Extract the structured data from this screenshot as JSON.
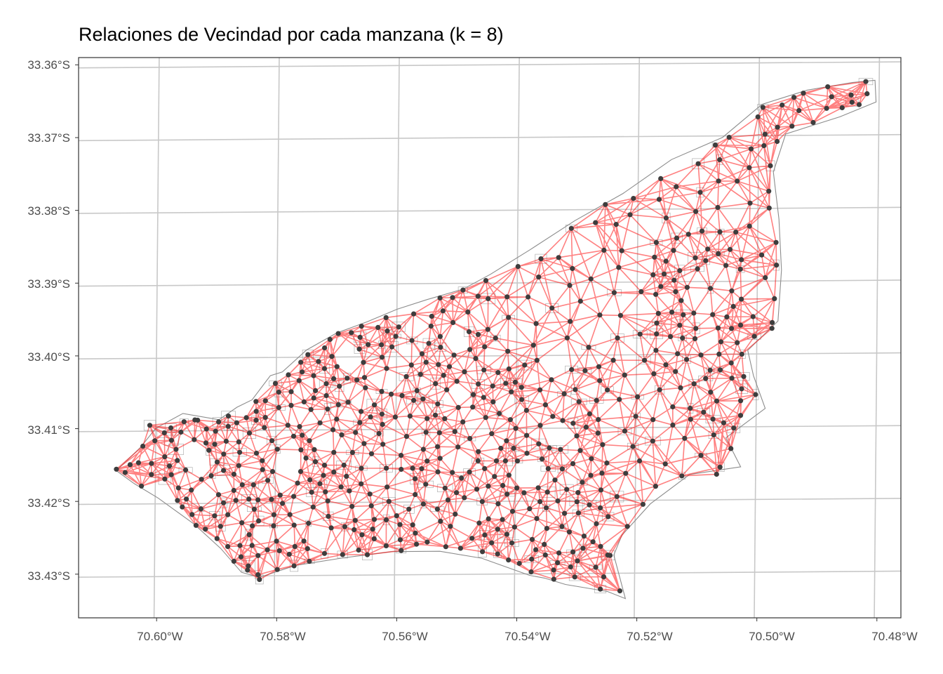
{
  "title": "Relaciones de Vecindad por cada manzana (k = 8)",
  "map": {
    "type": "neighbour-graph map",
    "k": 8,
    "lat_labels": [
      "33.36°S",
      "33.37°S",
      "33.38°S",
      "33.39°S",
      "33.40°S",
      "33.41°S",
      "33.42°S",
      "33.43°S"
    ],
    "lon_labels": [
      "70.60°W",
      "70.58°W",
      "70.56°W",
      "70.54°W",
      "70.52°W",
      "70.50°W",
      "70.48°W"
    ],
    "lat_values": [
      -33.36,
      -33.37,
      -33.38,
      -33.39,
      -33.4,
      -33.41,
      -33.42,
      -33.43
    ],
    "lon_values": [
      -70.6,
      -70.58,
      -70.56,
      -70.54,
      -70.52,
      -70.5,
      -70.48
    ],
    "extent": {
      "lon_min": -70.613,
      "lon_max": -70.476,
      "lat_min": -33.436,
      "lat_max": -33.359
    },
    "boundary_lonlat": [
      [
        -70.6065,
        -33.4154
      ],
      [
        -70.6025,
        -33.4122
      ],
      [
        -70.6,
        -33.4096
      ],
      [
        -70.5955,
        -33.4076
      ],
      [
        -70.5895,
        -33.4085
      ],
      [
        -70.5865,
        -33.4068
      ],
      [
        -70.584,
        -33.4058
      ],
      [
        -70.581,
        -33.4025
      ],
      [
        -70.579,
        -33.402
      ],
      [
        -70.575,
        -33.399
      ],
      [
        -70.57,
        -33.3967
      ],
      [
        -70.565,
        -33.3952
      ],
      [
        -70.56,
        -33.3935
      ],
      [
        -70.555,
        -33.3922
      ],
      [
        -70.549,
        -33.3908
      ],
      [
        -70.5445,
        -33.3888
      ],
      [
        -70.538,
        -33.3855
      ],
      [
        -70.5305,
        -33.3815
      ],
      [
        -70.5225,
        -33.3778
      ],
      [
        -70.5145,
        -33.3732
      ],
      [
        -70.506,
        -33.3702
      ],
      [
        -70.4995,
        -33.3657
      ],
      [
        -70.492,
        -33.3638
      ],
      [
        -70.4845,
        -33.3628
      ],
      [
        -70.4807,
        -33.3625
      ],
      [
        -70.4805,
        -33.3655
      ],
      [
        -70.4865,
        -33.3675
      ],
      [
        -70.4955,
        -33.3698
      ],
      [
        -70.4975,
        -33.375
      ],
      [
        -70.4965,
        -33.3815
      ],
      [
        -70.496,
        -33.3885
      ],
      [
        -70.4965,
        -33.3955
      ],
      [
        -70.5015,
        -33.3995
      ],
      [
        -70.5005,
        -33.403
      ],
      [
        -70.4985,
        -33.4075
      ],
      [
        -70.505,
        -33.4115
      ],
      [
        -70.5025,
        -33.4155
      ],
      [
        -70.511,
        -33.4165
      ],
      [
        -70.5175,
        -33.4205
      ],
      [
        -70.5222,
        -33.4248
      ],
      [
        -70.5235,
        -33.4275
      ],
      [
        -70.5225,
        -33.4305
      ],
      [
        -70.5215,
        -33.4335
      ],
      [
        -70.5245,
        -33.4325
      ],
      [
        -70.5315,
        -33.4315
      ],
      [
        -70.535,
        -33.4306
      ],
      [
        -70.5375,
        -33.4302
      ],
      [
        -70.5395,
        -33.4296
      ],
      [
        -70.5455,
        -33.4278
      ],
      [
        -70.5525,
        -33.4268
      ],
      [
        -70.5605,
        -33.4268
      ],
      [
        -70.5685,
        -33.4276
      ],
      [
        -70.5765,
        -33.4286
      ],
      [
        -70.5825,
        -33.4302
      ],
      [
        -70.5855,
        -33.4295
      ],
      [
        -70.589,
        -33.4262
      ],
      [
        -70.5935,
        -33.4228
      ],
      [
        -70.5995,
        -33.4192
      ],
      [
        -70.6035,
        -33.4172
      ]
    ],
    "colors": {
      "edge": "#ff1a1a",
      "node": "#3d3d3d",
      "block_outline": "#8c8c8c",
      "grid": "#c8c8c8",
      "panel_border": "#333333",
      "background": "#ffffff"
    }
  }
}
